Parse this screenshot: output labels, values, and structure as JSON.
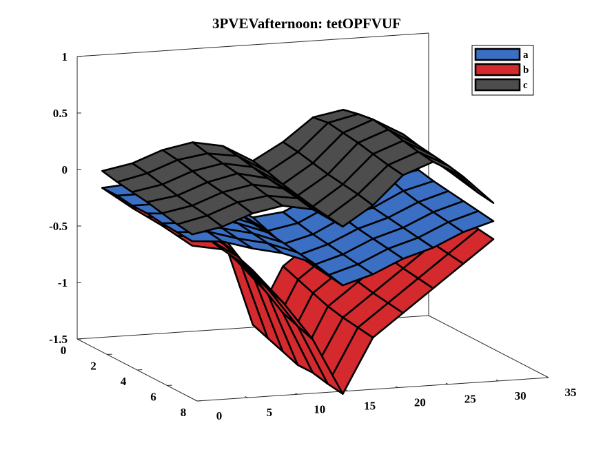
{
  "chart_data": {
    "type": "surface3d",
    "title": "3PVEVafternoon: tetOPFVUF",
    "xlabel": "",
    "ylabel": "",
    "zlabel": "",
    "xlim": [
      0,
      35
    ],
    "ylim": [
      0,
      8
    ],
    "zlim": [
      -1.5,
      1
    ],
    "x_ticks": [
      "0",
      "5",
      "10",
      "15",
      "20",
      "25",
      "30",
      "35"
    ],
    "y_ticks": [
      "0",
      "2",
      "4",
      "6",
      "8"
    ],
    "z_ticks": [
      "-1.5",
      "-1",
      "-0.5",
      "0",
      "0.5",
      "1"
    ],
    "legend_position": "top-right",
    "colors": {
      "a": "#3b6fc4",
      "b": "#d42a2e",
      "c": "#4d4d4d",
      "grid_edge": "#000000"
    },
    "series": [
      {
        "name": "a",
        "x": [
          1,
          4,
          7,
          10,
          13,
          16,
          19,
          22,
          25,
          28,
          31
        ],
        "y": [
          1,
          2,
          3,
          4,
          5,
          6,
          7
        ],
        "values": [
          [
            -0.1,
            -0.08,
            -0.12,
            -0.2,
            -0.3,
            -0.45,
            -0.42,
            -0.3,
            -0.2,
            -0.05,
            -0.02
          ],
          [
            -0.1,
            -0.1,
            -0.15,
            -0.22,
            -0.32,
            -0.5,
            -0.45,
            -0.32,
            -0.25,
            -0.1,
            -0.05
          ],
          [
            -0.12,
            -0.12,
            -0.18,
            -0.25,
            -0.35,
            -0.55,
            -0.48,
            -0.35,
            -0.28,
            -0.15,
            -0.08
          ],
          [
            -0.12,
            -0.14,
            -0.2,
            -0.26,
            -0.36,
            -0.58,
            -0.5,
            -0.38,
            -0.3,
            -0.18,
            -0.1
          ],
          [
            -0.14,
            -0.15,
            -0.22,
            -0.28,
            -0.38,
            -0.6,
            -0.52,
            -0.4,
            -0.32,
            -0.2,
            -0.12
          ],
          [
            -0.15,
            -0.16,
            -0.24,
            -0.3,
            -0.4,
            -0.62,
            -0.54,
            -0.42,
            -0.34,
            -0.22,
            -0.14
          ],
          [
            -0.16,
            -0.18,
            -0.26,
            -0.32,
            -0.42,
            -0.64,
            -0.56,
            -0.44,
            -0.36,
            -0.24,
            -0.16
          ]
        ]
      },
      {
        "name": "b",
        "x": [
          1,
          4,
          7,
          10,
          13,
          16,
          19,
          22,
          25,
          28,
          31
        ],
        "y": [
          1,
          2,
          3,
          4,
          5,
          6,
          7
        ],
        "values": [
          [
            -0.1,
            -0.1,
            -0.15,
            -0.35,
            -0.6,
            -1.4,
            -0.9,
            -0.7,
            -0.5,
            -0.3,
            -0.1
          ],
          [
            -0.12,
            -0.12,
            -0.2,
            -0.45,
            -0.7,
            -1.45,
            -0.95,
            -0.75,
            -0.55,
            -0.35,
            -0.15
          ],
          [
            -0.14,
            -0.15,
            -0.25,
            -0.55,
            -0.8,
            -1.5,
            -1.0,
            -0.8,
            -0.6,
            -0.4,
            -0.2
          ],
          [
            -0.15,
            -0.18,
            -0.3,
            -0.6,
            -0.9,
            -1.55,
            -1.05,
            -0.85,
            -0.65,
            -0.45,
            -0.25
          ],
          [
            -0.16,
            -0.2,
            -0.35,
            -0.65,
            -1.0,
            -1.55,
            -1.08,
            -0.88,
            -0.68,
            -0.48,
            -0.28
          ],
          [
            -0.18,
            -0.22,
            -0.4,
            -0.7,
            -1.05,
            -1.58,
            -1.1,
            -0.9,
            -0.7,
            -0.5,
            -0.3
          ],
          [
            -0.2,
            -0.25,
            -0.45,
            -0.75,
            -1.1,
            -1.6,
            -1.12,
            -0.92,
            -0.72,
            -0.52,
            -0.32
          ]
        ]
      },
      {
        "name": "c",
        "x": [
          1,
          4,
          7,
          10,
          13,
          16,
          19,
          22,
          25,
          28,
          31
        ],
        "y": [
          1,
          2,
          3,
          4,
          5,
          6,
          7
        ],
        "values": [
          [
            0.05,
            0.1,
            0.2,
            0.25,
            0.2,
            0.05,
            0.2,
            0.4,
            0.45,
            0.3,
            0.1
          ],
          [
            0.02,
            0.08,
            0.18,
            0.22,
            0.18,
            0.02,
            0.18,
            0.42,
            0.48,
            0.32,
            0.12
          ],
          [
            0.0,
            0.05,
            0.15,
            0.2,
            0.15,
            -0.02,
            0.15,
            0.4,
            0.5,
            0.35,
            0.1
          ],
          [
            -0.02,
            0.02,
            0.12,
            0.18,
            0.12,
            -0.05,
            0.12,
            0.38,
            0.48,
            0.32,
            0.08
          ],
          [
            -0.05,
            0.0,
            0.1,
            0.15,
            0.1,
            -0.08,
            0.1,
            0.35,
            0.45,
            0.3,
            0.05
          ],
          [
            -0.08,
            -0.02,
            0.08,
            0.12,
            0.08,
            -0.1,
            0.08,
            0.32,
            0.42,
            0.28,
            0.02
          ],
          [
            -0.1,
            -0.05,
            0.05,
            0.1,
            0.05,
            -0.12,
            0.05,
            0.3,
            0.4,
            0.25,
            0.0
          ]
        ]
      }
    ]
  }
}
